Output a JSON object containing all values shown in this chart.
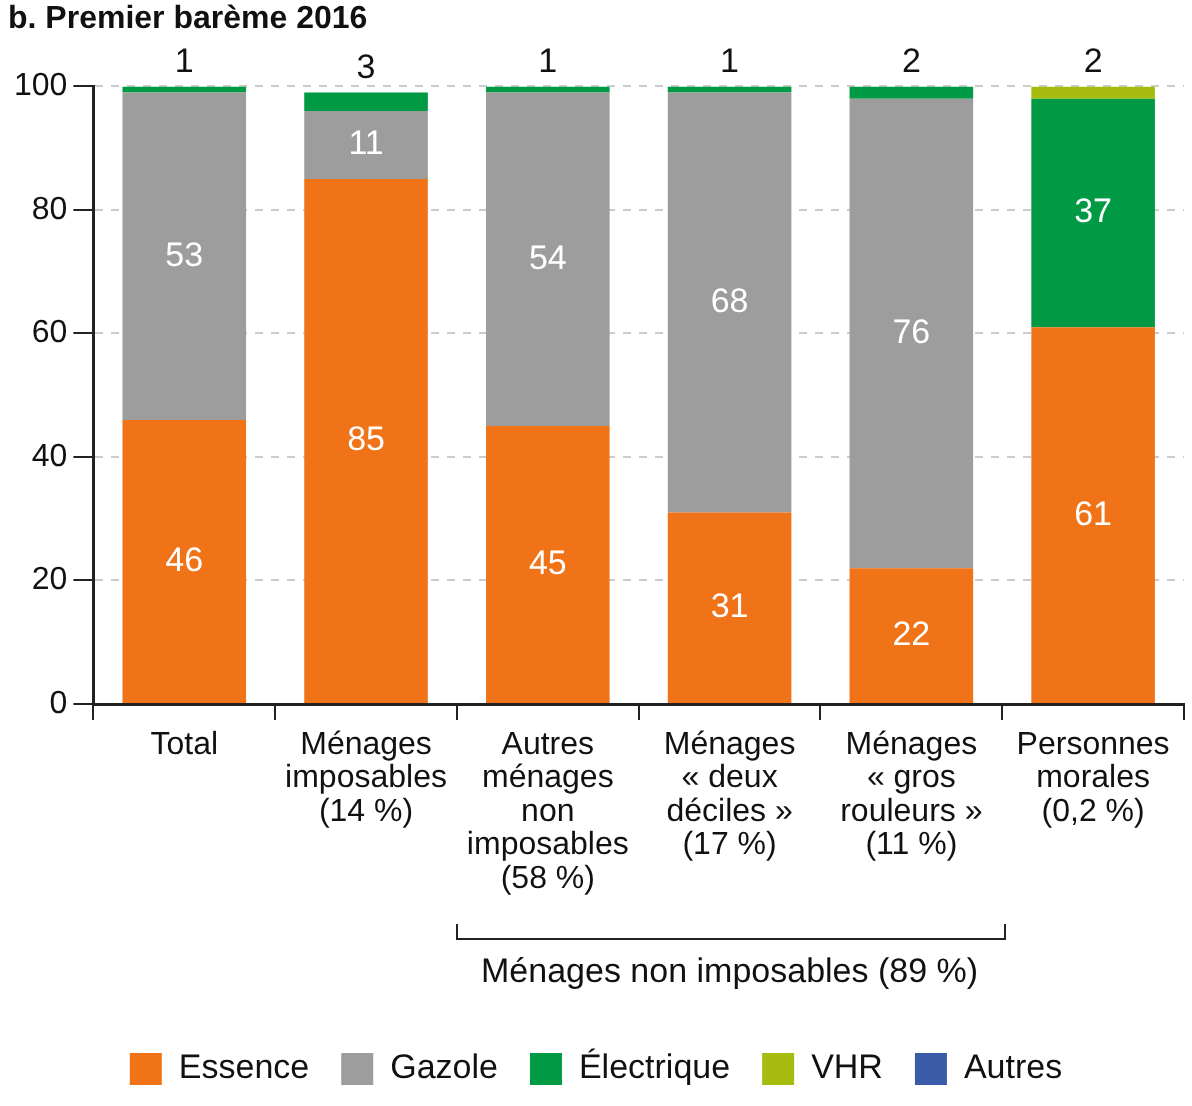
{
  "chart_data": {
    "type": "bar",
    "title": "b. Premier barème 2016",
    "stacked": true,
    "categories": [
      "Total",
      "Ménages\nimposables\n(14 %)",
      "Autres\nménages\nnon\nimposables\n(58 %)",
      "Ménages\n« deux\ndéciles »\n(17 %)",
      "Ménages\n« gros\nrouleurs »\n(11 %)",
      "Personnes\nmorales\n(0,2 %)"
    ],
    "series": [
      {
        "name": "Essence",
        "color": "#f07318",
        "values": [
          46,
          85,
          45,
          31,
          22,
          61
        ],
        "value_labels": [
          "46",
          "85",
          "45",
          "31",
          "22",
          "61"
        ]
      },
      {
        "name": "Gazole",
        "color": "#9d9d9d",
        "values": [
          53,
          11,
          54,
          68,
          76,
          null
        ],
        "value_labels": [
          "53",
          "11",
          "54",
          "68",
          "76",
          null
        ]
      },
      {
        "name": "Électrique",
        "color": "#009a44",
        "values": [
          1,
          3,
          1,
          1,
          2,
          37
        ],
        "value_labels": [
          "1",
          "3",
          "1",
          "1",
          "2",
          "37"
        ]
      },
      {
        "name": "VHR",
        "color": "#a6bd10",
        "values": [
          null,
          null,
          null,
          null,
          null,
          2
        ],
        "value_labels": [
          null,
          null,
          null,
          null,
          null,
          "2"
        ]
      },
      {
        "name": "Autres",
        "color": "#3a5ba8",
        "values": [
          null,
          null,
          null,
          null,
          null,
          null
        ]
      }
    ],
    "ylim": [
      0,
      100
    ],
    "yticks": [
      0,
      20,
      40,
      60,
      80,
      100
    ],
    "grid": "y",
    "legend": "bottom",
    "annotations": [
      "Ménages non imposables (89 %)"
    ]
  }
}
